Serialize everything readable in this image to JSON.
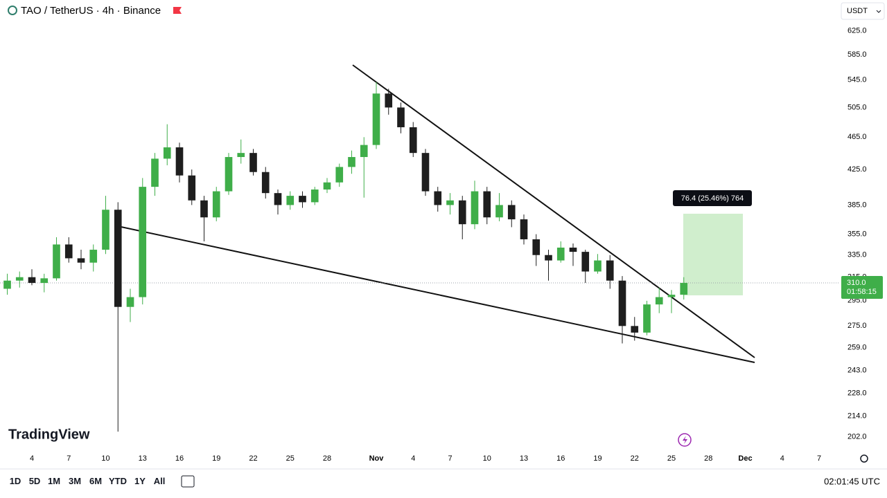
{
  "header": {
    "symbol": "TAO / TetherUS · 4h · Binance",
    "currency": "USDT"
  },
  "logo": "TradingView",
  "toolbar": {
    "ranges": [
      "1D",
      "5D",
      "1M",
      "3M",
      "6M",
      "YTD",
      "1Y",
      "All"
    ],
    "time": "02:01:45 UTC"
  },
  "chart_data": {
    "type": "candlestick",
    "log_scale": true,
    "grid": false,
    "up_color": "#3fae49",
    "down_color": "#1e1e1e",
    "categories": [
      null,
      null,
      "4",
      null,
      null,
      "7",
      null,
      null,
      "10",
      null,
      null,
      "13",
      null,
      null,
      "16",
      null,
      null,
      "19",
      null,
      null,
      "22",
      null,
      null,
      "25",
      null,
      null,
      "28",
      null,
      null,
      null,
      "Nov",
      null,
      null,
      "4",
      null,
      null,
      "7",
      null,
      null,
      "10",
      null,
      null,
      "13",
      null,
      null,
      "16",
      null,
      null,
      "19",
      null,
      null,
      "22",
      null,
      null,
      "25",
      null,
      null,
      "28",
      null,
      null,
      "Dec",
      null,
      null,
      "4",
      null,
      null,
      "7",
      null
    ],
    "open": [
      305,
      312,
      315,
      310,
      314,
      345,
      332,
      328,
      340,
      380,
      290,
      298,
      405,
      438,
      452,
      418,
      390,
      372,
      400,
      440,
      445,
      422,
      398,
      385,
      395,
      388,
      402,
      410,
      428,
      440,
      455,
      525,
      505,
      478,
      445,
      400,
      385,
      390,
      365,
      400,
      372,
      385,
      370,
      350,
      335,
      330,
      342,
      338,
      320,
      330,
      312,
      275,
      270,
      292,
      298,
      300,
      null,
      null,
      null,
      null,
      null,
      null,
      null,
      null,
      null,
      null,
      null,
      null
    ],
    "high": [
      318,
      320,
      322,
      318,
      352,
      352,
      340,
      345,
      395,
      388,
      305,
      415,
      445,
      482,
      458,
      425,
      395,
      405,
      445,
      462,
      450,
      428,
      402,
      400,
      400,
      405,
      415,
      432,
      448,
      465,
      542,
      532,
      512,
      485,
      450,
      405,
      398,
      395,
      412,
      405,
      398,
      390,
      375,
      355,
      340,
      348,
      346,
      340,
      336,
      335,
      316,
      282,
      295,
      306,
      304,
      315,
      null,
      null,
      null,
      null,
      null,
      null,
      null,
      null,
      null,
      null,
      null,
      null
    ],
    "low": [
      300,
      306,
      308,
      302,
      312,
      328,
      322,
      320,
      336,
      205,
      278,
      292,
      395,
      430,
      410,
      385,
      348,
      368,
      396,
      432,
      418,
      392,
      375,
      380,
      382,
      385,
      398,
      405,
      420,
      393,
      450,
      495,
      470,
      440,
      395,
      378,
      375,
      350,
      360,
      365,
      368,
      362,
      345,
      325,
      312,
      328,
      325,
      310,
      318,
      305,
      262,
      264,
      268,
      285,
      285,
      296,
      null,
      null,
      null,
      null,
      null,
      null,
      null,
      null,
      null,
      null,
      null,
      null
    ],
    "close": [
      312,
      315,
      310,
      314,
      345,
      332,
      328,
      340,
      380,
      290,
      298,
      405,
      438,
      452,
      418,
      390,
      372,
      400,
      440,
      445,
      422,
      398,
      385,
      395,
      388,
      402,
      410,
      428,
      440,
      455,
      525,
      505,
      478,
      445,
      400,
      385,
      390,
      365,
      400,
      372,
      385,
      370,
      350,
      335,
      330,
      342,
      338,
      320,
      330,
      312,
      275,
      270,
      292,
      298,
      300,
      310,
      null,
      null,
      null,
      null,
      null,
      null,
      null,
      null,
      null,
      null,
      null,
      null
    ],
    "ylim": [
      195,
      681
    ],
    "yticks": [
      {
        "value": 625,
        "label": "625.0"
      },
      {
        "value": 585,
        "label": "585.0"
      },
      {
        "value": 545,
        "label": "545.0"
      },
      {
        "value": 505,
        "label": "505.0"
      },
      {
        "value": 465,
        "label": "465.0"
      },
      {
        "value": 425,
        "label": "425.0"
      },
      {
        "value": 385,
        "label": "385.0"
      },
      {
        "value": 355,
        "label": "355.0"
      },
      {
        "value": 335,
        "label": "335.0"
      },
      {
        "value": 315,
        "label": "315.0"
      },
      {
        "value": 295,
        "label": "295.0"
      },
      {
        "value": 275,
        "label": "275.0"
      },
      {
        "value": 259,
        "label": "259.0"
      },
      {
        "value": 243,
        "label": "243.0"
      },
      {
        "value": 228,
        "label": "228.0"
      },
      {
        "value": 214,
        "label": "214.0"
      },
      {
        "value": 202,
        "label": "202.0"
      }
    ],
    "last_price": {
      "value": 310,
      "label": "310.0"
    },
    "countdown": "01:58:15",
    "measure_label": "76.4 (25.46%) 764"
  }
}
